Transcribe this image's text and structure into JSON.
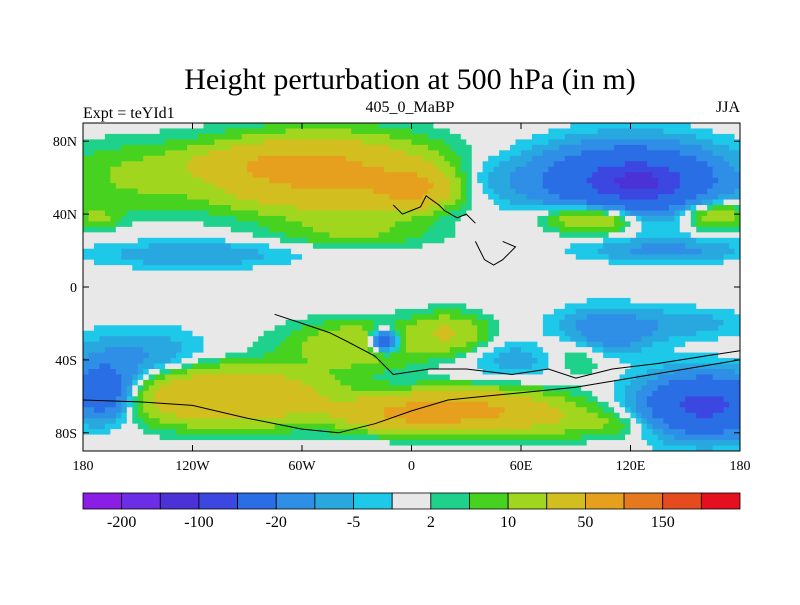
{
  "chart_data": {
    "type": "heatmap",
    "title": "Height perturbation at 500 hPa (in m)",
    "left_string": "Expt = teYId1",
    "center_string": "405_0_MaBP",
    "right_string": "JJA",
    "projection": "cylindrical equidistant",
    "x_range": [
      -180,
      180
    ],
    "y_range": [
      -90,
      90
    ],
    "x_ticks": [
      {
        "value": -180,
        "label": "180"
      },
      {
        "value": -120,
        "label": "120W"
      },
      {
        "value": -60,
        "label": "60W"
      },
      {
        "value": 0,
        "label": "0"
      },
      {
        "value": 60,
        "label": "60E"
      },
      {
        "value": 120,
        "label": "120E"
      },
      {
        "value": 180,
        "label": "180"
      }
    ],
    "y_ticks": [
      {
        "value": 80,
        "label": "80N"
      },
      {
        "value": 40,
        "label": "40N"
      },
      {
        "value": 0,
        "label": "0"
      },
      {
        "value": -40,
        "label": "40S"
      },
      {
        "value": -80,
        "label": "80S"
      }
    ],
    "levels": [
      -200,
      -150,
      -100,
      -50,
      -20,
      -10,
      -5,
      -2,
      2,
      5,
      10,
      20,
      50,
      100,
      150,
      200
    ],
    "colors": [
      "#8b1ee6",
      "#6b2ee6",
      "#4b32d6",
      "#3c46e0",
      "#2a6ee6",
      "#2f8ee6",
      "#29a8e0",
      "#1ec8e8",
      "#e8e8e8",
      "#1ed28c",
      "#46d21e",
      "#a0d61e",
      "#d2be1e",
      "#e6a01e",
      "#e6781e",
      "#e64b1e",
      "#e60f1e"
    ],
    "colorbar_labels": [
      {
        "after_box": 1,
        "label": "-200"
      },
      {
        "after_box": 3,
        "label": "-100"
      },
      {
        "after_box": 5,
        "label": "-20"
      },
      {
        "after_box": 7,
        "label": "-5"
      },
      {
        "after_box": 9,
        "label": "2"
      },
      {
        "after_box": 11,
        "label": "10"
      },
      {
        "after_box": 13,
        "label": "50"
      },
      {
        "after_box": 15,
        "label": "150"
      }
    ],
    "field_blobs": [
      {
        "lon": -155,
        "lat": 60,
        "slon": 40,
        "slat": 18,
        "amp": 10
      },
      {
        "lon": -50,
        "lat": 62,
        "slon": 55,
        "slat": 18,
        "amp": 60
      },
      {
        "lon": 0,
        "lat": 54,
        "slon": 20,
        "slat": 10,
        "amp": 50
      },
      {
        "lon": -80,
        "lat": 68,
        "slon": 40,
        "slat": 8,
        "amp": 20
      },
      {
        "lon": -30,
        "lat": 30,
        "slon": 40,
        "slat": 8,
        "amp": 10
      },
      {
        "lon": 40,
        "lat": 60,
        "slon": 30,
        "slat": 12,
        "amp": -6
      },
      {
        "lon": 120,
        "lat": 58,
        "slon": 45,
        "slat": 18,
        "amp": -60
      },
      {
        "lon": 125,
        "lat": 58,
        "slon": 16,
        "slat": 6,
        "amp": -80
      },
      {
        "lon": 100,
        "lat": 38,
        "slon": 25,
        "slat": 8,
        "amp": 30
      },
      {
        "lon": 165,
        "lat": 40,
        "slon": 20,
        "slat": 8,
        "amp": 20
      },
      {
        "lon": -172,
        "lat": 38,
        "slon": 12,
        "slat": 6,
        "amp": 10
      },
      {
        "lon": 140,
        "lat": 20,
        "slon": 40,
        "slat": 6,
        "amp": -12
      },
      {
        "lon": -120,
        "lat": 18,
        "slon": 50,
        "slat": 7,
        "amp": -10
      },
      {
        "lon": -150,
        "lat": -40,
        "slon": 35,
        "slat": 15,
        "amp": -12
      },
      {
        "lon": -170,
        "lat": -58,
        "slon": 18,
        "slat": 14,
        "amp": -40
      },
      {
        "lon": -100,
        "lat": -60,
        "slon": 50,
        "slat": 14,
        "amp": 50
      },
      {
        "lon": -30,
        "lat": -32,
        "slon": 35,
        "slat": 12,
        "amp": 20
      },
      {
        "lon": -15,
        "lat": -30,
        "slon": 8,
        "slat": 6,
        "amp": -45
      },
      {
        "lon": 20,
        "lat": -25,
        "slon": 20,
        "slat": 10,
        "amp": 20
      },
      {
        "lon": 30,
        "lat": -68,
        "slon": 45,
        "slat": 10,
        "amp": 60
      },
      {
        "lon": -10,
        "lat": -70,
        "slon": 30,
        "slat": 8,
        "amp": 30
      },
      {
        "lon": 60,
        "lat": -40,
        "slon": 25,
        "slat": 10,
        "amp": -8
      },
      {
        "lon": 90,
        "lat": -35,
        "slon": 20,
        "slat": 12,
        "amp": 10
      },
      {
        "lon": 105,
        "lat": -25,
        "slon": 25,
        "slat": 12,
        "amp": -20
      },
      {
        "lon": 160,
        "lat": -65,
        "slon": 30,
        "slat": 15,
        "amp": -60
      },
      {
        "lon": 150,
        "lat": -20,
        "slon": 30,
        "slat": 8,
        "amp": -8
      },
      {
        "lon": 100,
        "lat": -75,
        "slon": 40,
        "slat": 8,
        "amp": 10
      }
    ],
    "coastlines": [
      {
        "name": "europe-coast",
        "points": [
          [
            -10,
            45
          ],
          [
            -5,
            40
          ],
          [
            0,
            42
          ],
          [
            5,
            44
          ],
          [
            8,
            50
          ],
          [
            15,
            45
          ],
          [
            18,
            42
          ],
          [
            25,
            38
          ],
          [
            30,
            40
          ],
          [
            35,
            35
          ]
        ]
      },
      {
        "name": "arabia-coast",
        "points": [
          [
            35,
            25
          ],
          [
            40,
            15
          ],
          [
            45,
            12
          ],
          [
            50,
            15
          ],
          [
            57,
            22
          ],
          [
            50,
            25
          ]
        ]
      },
      {
        "name": "southern-coast",
        "points": [
          [
            -75,
            -15
          ],
          [
            -60,
            -20
          ],
          [
            -45,
            -25
          ],
          [
            -35,
            -30
          ],
          [
            -20,
            -38
          ],
          [
            -10,
            -48
          ],
          [
            10,
            -45
          ],
          [
            30,
            -45
          ],
          [
            55,
            -48
          ],
          [
            75,
            -45
          ],
          [
            90,
            -50
          ],
          [
            110,
            -45
          ],
          [
            135,
            -42
          ],
          [
            160,
            -38
          ],
          [
            180,
            -35
          ]
        ]
      },
      {
        "name": "southern-polar-coast",
        "points": [
          [
            -180,
            -62
          ],
          [
            -150,
            -63
          ],
          [
            -120,
            -65
          ],
          [
            -90,
            -72
          ],
          [
            -60,
            -78
          ],
          [
            -40,
            -80
          ],
          [
            -20,
            -75
          ],
          [
            0,
            -68
          ],
          [
            20,
            -62
          ],
          [
            40,
            -60
          ],
          [
            60,
            -58
          ],
          [
            90,
            -55
          ],
          [
            120,
            -50
          ],
          [
            150,
            -45
          ],
          [
            180,
            -40
          ]
        ]
      }
    ]
  }
}
